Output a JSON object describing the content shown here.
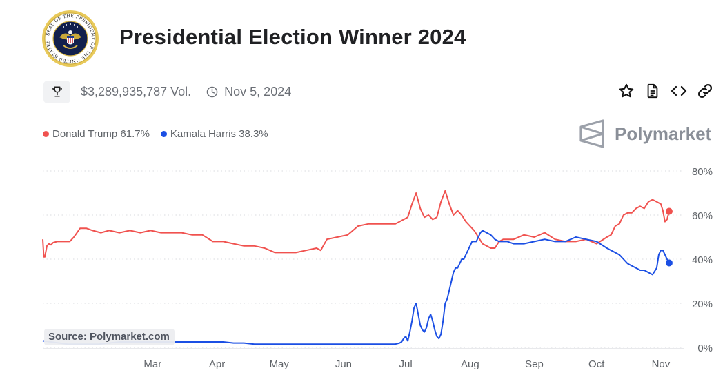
{
  "header": {
    "title": "Presidential Election Winner 2024",
    "volume": "$3,289,935,787 Vol.",
    "end_date": "Nov 5, 2024"
  },
  "seal": {
    "text": "SEAL OF THE PRESIDENT OF THE UNITED STATES"
  },
  "brand": {
    "name": "Polymarket"
  },
  "actions": [
    {
      "name": "star-icon"
    },
    {
      "name": "document-icon"
    },
    {
      "name": "embed-code-icon"
    },
    {
      "name": "link-icon"
    }
  ],
  "source": "Source: Polymarket.com",
  "colors": {
    "trump": "#f0524f",
    "harris": "#1b4fe4",
    "grid": "#d9dbdf",
    "axis_text": "#5f6368"
  },
  "chart_data": {
    "type": "line",
    "title": "Presidential Election Winner 2024",
    "x_unit": "day_of_year_2024",
    "x_range": [
      8,
      317
    ],
    "ylim": [
      0,
      80
    ],
    "y_ticks": [
      {
        "value": 80,
        "label": "80%"
      },
      {
        "value": 60,
        "label": "60%"
      },
      {
        "value": 40,
        "label": "40%"
      },
      {
        "value": 20,
        "label": "20%"
      },
      {
        "value": 0,
        "label": "0%"
      }
    ],
    "x_ticks": [
      {
        "value": 61,
        "label": "Mar"
      },
      {
        "value": 92,
        "label": "Apr"
      },
      {
        "value": 122,
        "label": "May"
      },
      {
        "value": 153,
        "label": "Jun"
      },
      {
        "value": 183,
        "label": "Jul"
      },
      {
        "value": 214,
        "label": "Aug"
      },
      {
        "value": 245,
        "label": "Sep"
      },
      {
        "value": 275,
        "label": "Oct"
      },
      {
        "value": 306,
        "label": "Nov"
      }
    ],
    "grid": true,
    "legend_position": "top-left",
    "series": [
      {
        "name": "Donald Trump",
        "legend": "Donald Trump 61.7%",
        "final_value": 61.7,
        "color": "#f0524f",
        "x": [
          8,
          8.5,
          9,
          10,
          11,
          12,
          13,
          15,
          17,
          19,
          21,
          23,
          26,
          29,
          32,
          36,
          40,
          45,
          50,
          55,
          60,
          65,
          70,
          75,
          80,
          85,
          90,
          95,
          100,
          105,
          110,
          115,
          120,
          125,
          130,
          135,
          140,
          142,
          145,
          150,
          155,
          160,
          165,
          170,
          175,
          178,
          180,
          182,
          184,
          186,
          188,
          190,
          192,
          194,
          196,
          198,
          200,
          202,
          204,
          206,
          208,
          210,
          212,
          214,
          216,
          218,
          220,
          222,
          224,
          226,
          228,
          230,
          235,
          240,
          245,
          250,
          255,
          260,
          265,
          270,
          275,
          280,
          282,
          284,
          286,
          288,
          290,
          292,
          294,
          296,
          298,
          300,
          302,
          304,
          306,
          307,
          308,
          309,
          310
        ],
        "y": [
          49,
          41,
          41,
          46,
          47,
          46.5,
          47.5,
          48,
          48,
          48,
          48,
          50,
          54,
          54,
          53,
          52,
          53,
          52,
          53,
          52,
          53,
          52,
          52,
          52,
          51,
          51,
          48,
          48,
          47,
          46,
          46,
          45,
          43,
          43,
          43,
          44,
          45,
          44,
          49,
          50,
          51,
          55,
          56,
          56,
          56,
          56,
          57,
          58,
          59,
          65,
          70,
          63,
          59,
          60,
          58,
          59,
          66,
          71,
          65,
          60,
          62,
          60,
          57,
          55,
          53,
          50,
          47,
          46,
          45,
          45,
          48,
          49,
          49,
          51,
          50,
          52,
          49,
          48,
          48,
          49,
          47,
          50,
          51,
          55,
          56,
          60,
          61,
          61,
          63,
          64,
          63,
          66,
          67,
          66,
          65,
          62,
          57,
          58,
          61.7
        ]
      },
      {
        "name": "Kamala Harris",
        "legend": "Kamala Harris 38.3%",
        "final_value": 38.3,
        "color": "#1b4fe4",
        "x": [
          8,
          12,
          16,
          20,
          25,
          30,
          35,
          40,
          45,
          50,
          55,
          60,
          65,
          70,
          75,
          80,
          85,
          90,
          95,
          100,
          105,
          110,
          115,
          120,
          125,
          130,
          135,
          140,
          145,
          150,
          155,
          160,
          165,
          170,
          175,
          178,
          180,
          181,
          182,
          183,
          184,
          185,
          186,
          187,
          188,
          189,
          190,
          191,
          192,
          193,
          194,
          195,
          196,
          197,
          198,
          199,
          200,
          201,
          202,
          203,
          204,
          205,
          206,
          207,
          208,
          209,
          210,
          211,
          212,
          213,
          214,
          215,
          216,
          217,
          218,
          219,
          220,
          222,
          224,
          226,
          228,
          230,
          232,
          235,
          240,
          245,
          250,
          255,
          260,
          265,
          270,
          275,
          280,
          282,
          284,
          286,
          288,
          290,
          292,
          294,
          296,
          298,
          300,
          302,
          304,
          305,
          306,
          307,
          308,
          309,
          310
        ],
        "y": [
          3,
          2.5,
          2,
          1.5,
          1.5,
          1.5,
          1.5,
          2,
          2.5,
          2.5,
          2.5,
          2.5,
          2.5,
          2.5,
          2.5,
          2.5,
          2.5,
          2.5,
          2.5,
          2,
          2,
          1.5,
          1.5,
          1.5,
          1.5,
          1.5,
          1.5,
          1.5,
          1.5,
          1.5,
          1.5,
          1.5,
          1.5,
          1.5,
          1.5,
          1.5,
          2,
          2.5,
          4,
          5,
          3,
          7,
          12,
          18,
          20,
          15,
          10,
          8,
          7,
          9,
          13,
          15,
          12,
          8,
          5,
          4,
          6,
          12,
          20,
          22,
          26,
          30,
          34,
          36,
          36,
          38,
          40,
          40,
          42,
          44,
          46,
          48,
          48,
          48,
          50,
          52,
          53,
          52,
          51,
          49,
          48,
          48,
          48,
          47,
          47,
          48,
          49,
          48,
          48,
          50,
          49,
          48,
          45,
          44,
          43,
          42,
          40,
          38,
          37,
          36,
          35,
          35,
          34,
          33,
          36,
          42,
          44,
          44,
          42,
          40,
          38.3
        ]
      }
    ]
  }
}
